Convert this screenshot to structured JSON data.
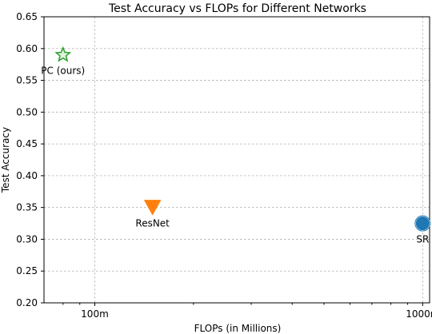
{
  "chart_data": {
    "type": "scatter",
    "title": "Test Accuracy vs FLOPs for Different Networks",
    "xlabel": "FLOPs (in Millions)",
    "ylabel": "Test Accuracy",
    "xscale": "log",
    "xlim": [
      70,
      1050
    ],
    "ylim": [
      0.2,
      0.65
    ],
    "x_ticks": [
      {
        "value": 100,
        "label": "100m"
      },
      {
        "value": 1000,
        "label": "1000m"
      }
    ],
    "x_minor_ticks": [
      80,
      90,
      200,
      300,
      400,
      500,
      600,
      700,
      800,
      900
    ],
    "y_ticks": [
      {
        "value": 0.2,
        "label": "0.20"
      },
      {
        "value": 0.25,
        "label": "0.25"
      },
      {
        "value": 0.3,
        "label": "0.30"
      },
      {
        "value": 0.35,
        "label": "0.35"
      },
      {
        "value": 0.4,
        "label": "0.40"
      },
      {
        "value": 0.45,
        "label": "0.45"
      },
      {
        "value": 0.5,
        "label": "0.50"
      },
      {
        "value": 0.55,
        "label": "0.55"
      },
      {
        "value": 0.6,
        "label": "0.60"
      },
      {
        "value": 0.65,
        "label": "0.65"
      }
    ],
    "grid": true,
    "points": [
      {
        "label": "PC (ours)",
        "x": 80,
        "y": 0.59,
        "marker": "star",
        "color": "#2ca02c",
        "label_position": "below"
      },
      {
        "label": "ResNet",
        "x": 150,
        "y": 0.35,
        "marker": "triangle-down",
        "color": "#ff7f0e",
        "label_position": "below"
      },
      {
        "label": "SR",
        "x": 1000,
        "y": 0.325,
        "marker": "circle",
        "color": "#1f77b4",
        "label_position": "below"
      }
    ]
  }
}
